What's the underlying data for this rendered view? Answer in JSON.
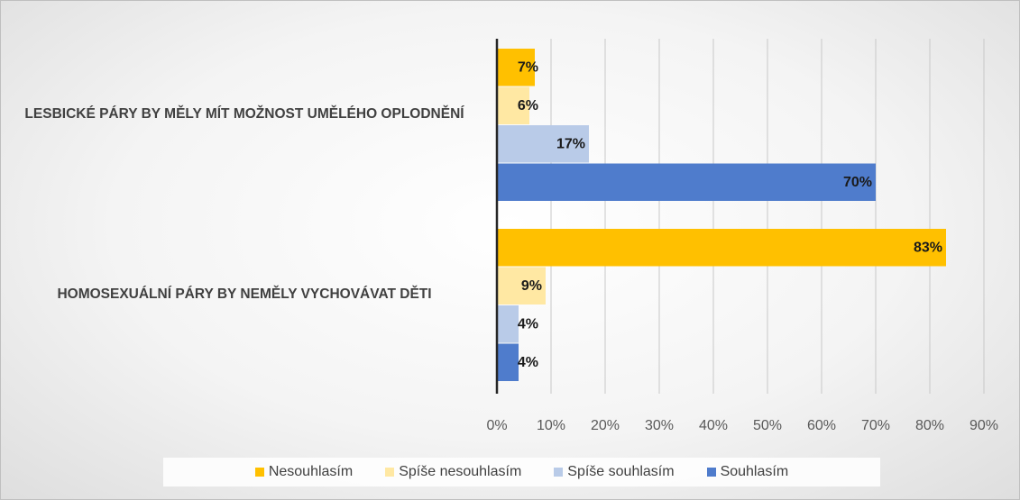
{
  "chart_data": {
    "type": "barh",
    "categories": [
      "LESBICKÉ PÁRY BY MĚLY MÍT MOŽNOST UMĚLÉHO OPLODNĚNÍ",
      "HOMOSEXUÁLNÍ PÁRY BY NEMĚLY VYCHOVÁVAT DĚTI"
    ],
    "series": [
      {
        "name": "Nesouhlasím",
        "color": "#ffc000",
        "values": [
          7,
          83
        ],
        "value_labels": [
          "7%",
          "83%"
        ]
      },
      {
        "name": "Spíše nesouhlasím",
        "color": "#ffe8a3",
        "values": [
          6,
          9
        ],
        "value_labels": [
          "6%",
          "9%"
        ]
      },
      {
        "name": "Spíše souhlasím",
        "color": "#b9cbe8",
        "values": [
          17,
          4
        ],
        "value_labels": [
          "17%",
          "4%"
        ]
      },
      {
        "name": "Souhlasím",
        "color": "#4f7ccc",
        "values": [
          70,
          4
        ],
        "value_labels": [
          "70%",
          "4%"
        ]
      }
    ],
    "xlim": [
      0,
      90
    ],
    "xticks": [
      {
        "value": 0,
        "label": "0%"
      },
      {
        "value": 10,
        "label": "10%"
      },
      {
        "value": 20,
        "label": "20%"
      },
      {
        "value": 30,
        "label": "30%"
      },
      {
        "value": 40,
        "label": "40%"
      },
      {
        "value": 50,
        "label": "50%"
      },
      {
        "value": 60,
        "label": "60%"
      },
      {
        "value": 70,
        "label": "70%"
      },
      {
        "value": 80,
        "label": "80%"
      },
      {
        "value": 90,
        "label": "90%"
      }
    ],
    "grid": true,
    "legend": "bottom"
  }
}
